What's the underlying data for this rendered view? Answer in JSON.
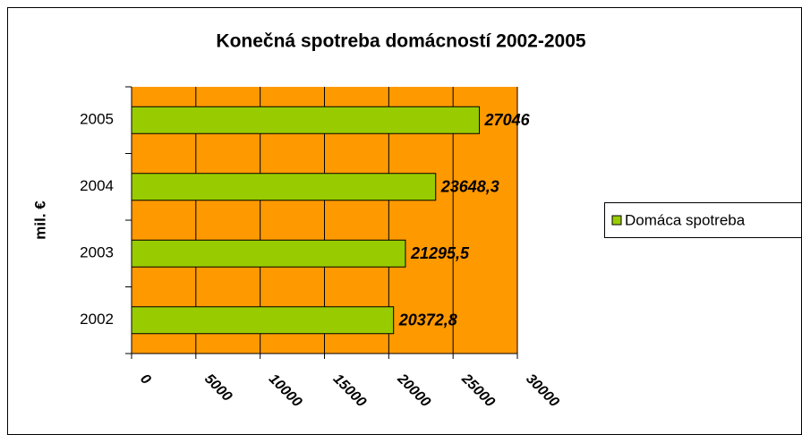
{
  "chart_data": {
    "type": "bar",
    "orientation": "horizontal",
    "title": "Konečná spotreba domácností 2002-2005",
    "y_label": "mil. €",
    "categories": [
      "2002",
      "2003",
      "2004",
      "2005"
    ],
    "series": [
      {
        "name": "Domáca spotreba",
        "color": "#99cc00",
        "values": [
          20372.8,
          21295.5,
          23648.3,
          27046
        ],
        "value_labels": [
          "20372,8",
          "21295,5",
          "23648,3",
          "27046"
        ]
      }
    ],
    "xlim": [
      0,
      30000
    ],
    "xticks": [
      0,
      5000,
      10000,
      15000,
      20000,
      25000,
      30000
    ],
    "grid": true,
    "plot_background": "#ff9900",
    "legend": "right"
  }
}
